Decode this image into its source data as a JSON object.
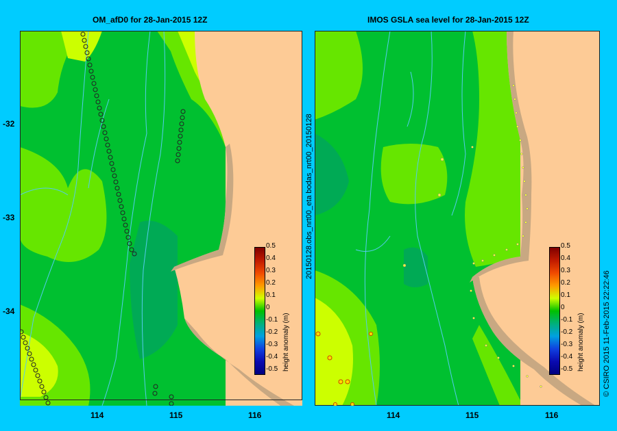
{
  "left_panel": {
    "title": "OM_afD0 for 28-Jan-2015 12Z",
    "x_ticks": [
      "114",
      "115",
      "116"
    ],
    "y_ticks": [
      "-32",
      "-33",
      "-34"
    ]
  },
  "right_panel": {
    "title": "IMOS GSLA sea level  for 28-Jan-2015 12Z",
    "x_ticks": [
      "114",
      "115",
      "116"
    ],
    "side_label": "20150128.obs_nrt00_eta    bodas_nrt00_20150128"
  },
  "colorbar": {
    "ticks": [
      "0.5",
      "0.4",
      "0.3",
      "0.2",
      "0.1",
      "0",
      "-0.1",
      "-0.2",
      "-0.3",
      "-0.4",
      "-0.5"
    ],
    "label": "height anomaly (m)"
  },
  "credit": "© CSIRO 2015   11-Feb-2015 22:22:46",
  "colors": {
    "background": "#00ccff",
    "land": "#fdcb96",
    "shelf": "#c8a882",
    "anomaly_0": "#00c030",
    "anomaly_0_1": "#66e600",
    "anomaly_0_2": "#ccff00",
    "anomaly_neg_0_1": "#00aa55"
  }
}
